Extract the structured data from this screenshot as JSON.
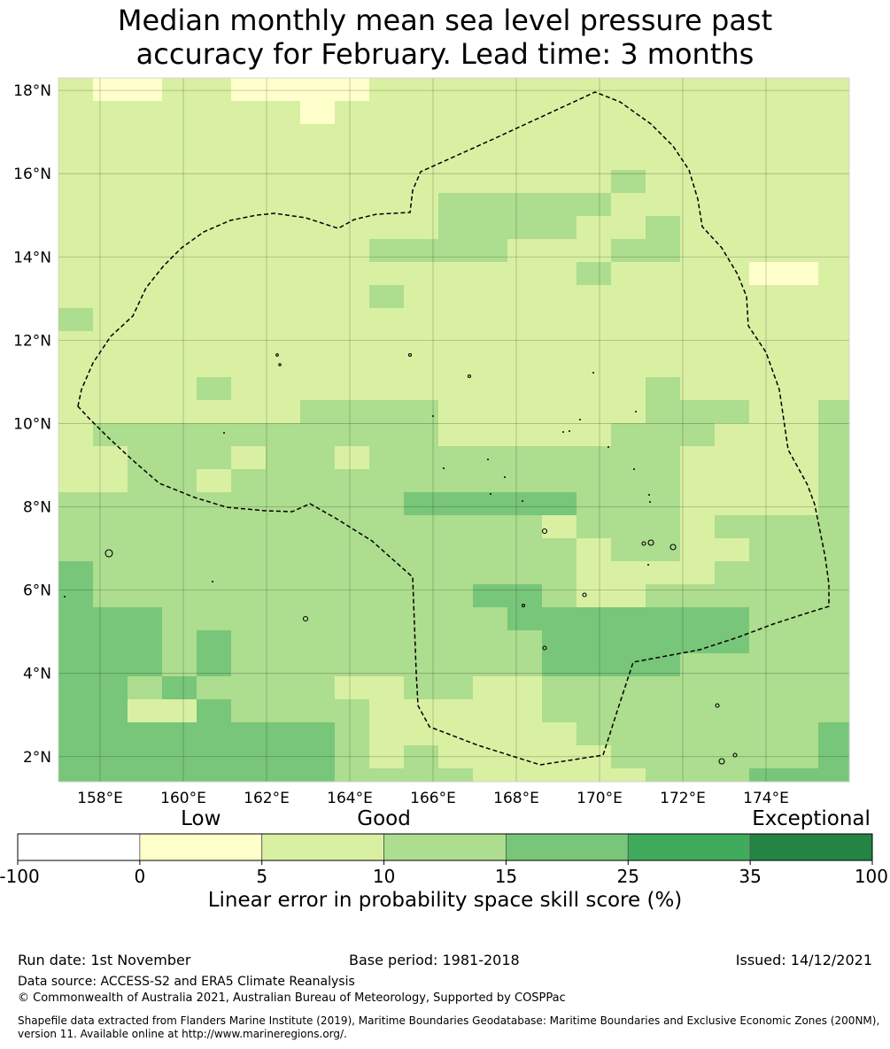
{
  "title": {
    "line1": "Median monthly mean sea level pressure past",
    "line2": "accuracy for February. Lead time: 3 months"
  },
  "map": {
    "lat_labels": [
      "18°N",
      "16°N",
      "14°N",
      "12°N",
      "10°N",
      "8°N",
      "6°N",
      "4°N",
      "2°N"
    ],
    "lat_values": [
      18,
      16,
      14,
      12,
      10,
      8,
      6,
      4,
      2
    ],
    "lon_labels": [
      "158°E",
      "160°E",
      "162°E",
      "164°E",
      "166°E",
      "168°E",
      "170°E",
      "172°E",
      "174°E"
    ],
    "lon_values": [
      158,
      160,
      162,
      164,
      166,
      168,
      170,
      172,
      174
    ],
    "extent": {
      "lon": [
        157.0,
        176.0
      ],
      "lat": [
        1.4,
        18.3
      ]
    },
    "grid": "on",
    "eez_boundary_style": "dashed black line"
  },
  "colorbar": {
    "categories": [
      {
        "label": "Low",
        "at": 2.5
      },
      {
        "label": "Good",
        "at": 10
      },
      {
        "label": "Exceptional",
        "at": 67.5
      }
    ],
    "ticks": [
      "-100",
      "0",
      "5",
      "10",
      "15",
      "25",
      "35",
      "100"
    ],
    "bins": [
      {
        "from": -100,
        "to": 0,
        "color": "#ffffff"
      },
      {
        "from": 0,
        "to": 5,
        "color": "#ffffcc"
      },
      {
        "from": 5,
        "to": 10,
        "color": "#d9f0a3"
      },
      {
        "from": 10,
        "to": 15,
        "color": "#addd8e"
      },
      {
        "from": 15,
        "to": 25,
        "color": "#78c679"
      },
      {
        "from": 25,
        "to": 35,
        "color": "#41ab5d"
      },
      {
        "from": 35,
        "to": 100,
        "color": "#238443"
      }
    ],
    "label": "Linear error in probability space skill score (%)"
  },
  "footer": {
    "run_date": "Run date: 1st November",
    "base_period": "Base period: 1981-2018",
    "issued": "Issued: 14/12/2021",
    "data_source": "Data source: ACCESS-S2 and ERA5 Climate Reanalysis",
    "copyright": "© Commonwealth of Australia 2021, Australian Bureau of Meteorology, Supported by COSPPac",
    "shapefile": "Shapefile data extracted from Flanders Marine Institute (2019), Maritime Boundaries Geodatabase: Maritime Boundaries and Exclusive Economic Zones (200NM), version 11. Available online at http://www.marineregions.org/."
  }
}
